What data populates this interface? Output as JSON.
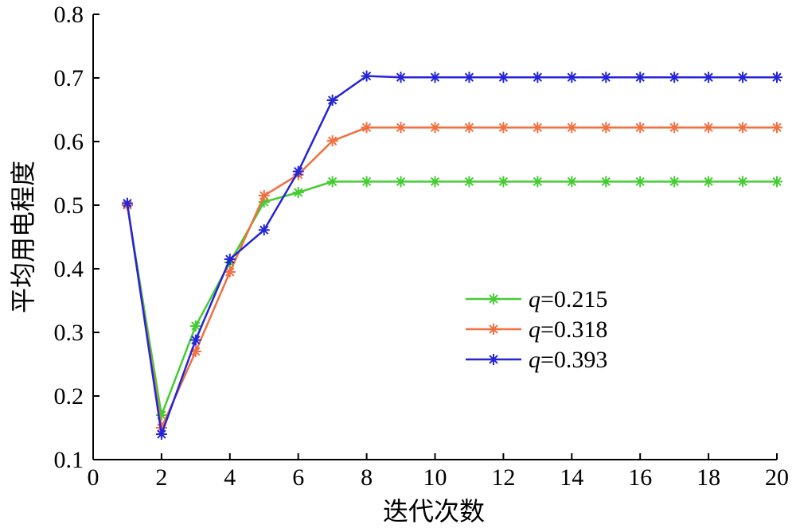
{
  "chart_data": {
    "type": "line",
    "title": "",
    "xlabel": "迭代次数",
    "ylabel": "平均用电程度",
    "xlim": [
      0,
      20
    ],
    "ylim": [
      0.1,
      0.8
    ],
    "xticks": [
      0,
      2,
      4,
      6,
      8,
      10,
      12,
      14,
      16,
      18,
      20
    ],
    "yticks": [
      0.1,
      0.2,
      0.3,
      0.4,
      0.5,
      0.6,
      0.7,
      0.8
    ],
    "xtick_labels": [
      "0",
      "2",
      "4",
      "6",
      "8",
      "10",
      "12",
      "14",
      "16",
      "18",
      "20"
    ],
    "ytick_labels": [
      "0.1",
      "0.2",
      "0.3",
      "0.4",
      "0.5",
      "0.6",
      "0.7",
      "0.8"
    ],
    "grid": false,
    "legend_position": "right",
    "x": [
      1,
      2,
      3,
      4,
      5,
      6,
      7,
      8,
      9,
      10,
      11,
      12,
      13,
      14,
      15,
      16,
      17,
      18,
      19,
      20
    ],
    "series": [
      {
        "name": "q=0.215",
        "legend_var": "q",
        "legend_value": "=0.215",
        "color": "#44cc33",
        "marker": "asterisk",
        "values": [
          0.5,
          0.17,
          0.31,
          0.41,
          0.505,
          0.52,
          0.537,
          0.537,
          0.537,
          0.537,
          0.537,
          0.537,
          0.537,
          0.537,
          0.537,
          0.537,
          0.537,
          0.537,
          0.537,
          0.537
        ]
      },
      {
        "name": "q=0.318",
        "legend_var": "q",
        "legend_value": "=0.318",
        "color": "#f07040",
        "marker": "asterisk",
        "values": [
          0.5,
          0.15,
          0.27,
          0.395,
          0.515,
          0.548,
          0.601,
          0.622,
          0.622,
          0.622,
          0.622,
          0.622,
          0.622,
          0.622,
          0.622,
          0.622,
          0.622,
          0.622,
          0.622,
          0.622
        ]
      },
      {
        "name": "q=0.393",
        "legend_var": "q",
        "legend_value": "=0.393",
        "color": "#2424d8",
        "marker": "asterisk",
        "values": [
          0.503,
          0.14,
          0.288,
          0.415,
          0.461,
          0.553,
          0.665,
          0.703,
          0.701,
          0.701,
          0.701,
          0.701,
          0.701,
          0.701,
          0.701,
          0.701,
          0.701,
          0.701,
          0.701,
          0.701
        ]
      }
    ]
  }
}
